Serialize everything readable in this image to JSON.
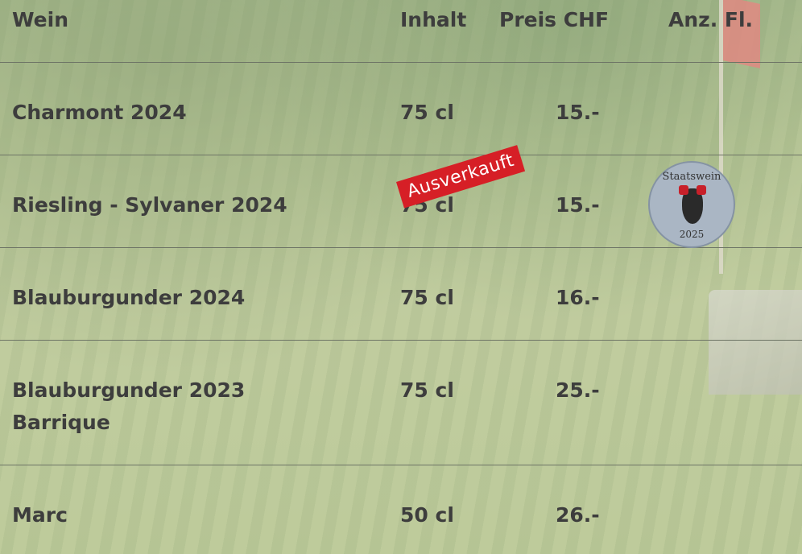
{
  "header": {
    "columns": [
      "Wein",
      "Inhalt",
      "Preis CHF",
      "Anz. Fl."
    ]
  },
  "table": {
    "rows": [
      {
        "name": [
          "Charmont 2024"
        ],
        "volume": "75 cl",
        "price": "15.-"
      },
      {
        "name": [
          "Riesling - Sylvaner 2024"
        ],
        "volume": "75 cl",
        "price": "15.-"
      },
      {
        "name": [
          "Blauburgunder 2024"
        ],
        "volume": "75 cl",
        "price": "16.-"
      },
      {
        "name": [
          "Blauburgunder 2023",
          "Barrique"
        ],
        "volume": "75 cl",
        "price": "25.-"
      },
      {
        "name": [
          "Marc"
        ],
        "volume": "50 cl",
        "price": "26.-"
      }
    ]
  },
  "stamp": "Ausverkauft",
  "badge": {
    "title": "Staatswein",
    "year": "2025"
  }
}
